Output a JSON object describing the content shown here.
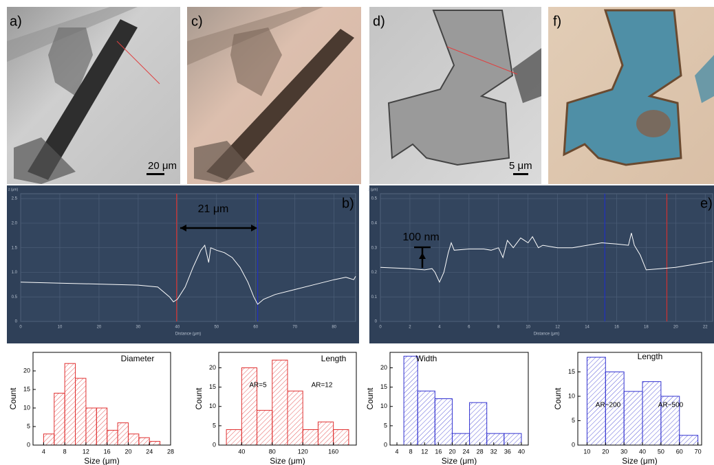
{
  "panels": [
    {
      "label": "a)",
      "scale": "20 μm"
    },
    {
      "label": "c)"
    },
    {
      "label": "d)",
      "scale": "5 μm"
    },
    {
      "label": "f)"
    }
  ],
  "chart_data": [
    {
      "type": "profile",
      "label": "b)",
      "x_label": "Distance (μm)",
      "y_label": "z (μm)",
      "annotations": [
        "21 μm"
      ],
      "x": [
        0,
        10,
        20,
        30,
        35,
        38,
        39,
        40,
        42,
        44,
        46,
        47,
        48,
        48.5,
        50,
        52,
        54,
        56,
        58,
        59.5,
        60.5,
        62,
        65,
        70,
        75,
        80,
        83,
        85,
        85.5
      ],
      "values": [
        0.8,
        0.78,
        0.76,
        0.74,
        0.7,
        0.5,
        0.4,
        0.45,
        0.7,
        1.1,
        1.45,
        1.55,
        1.2,
        1.5,
        1.45,
        1.4,
        1.3,
        1.1,
        0.8,
        0.5,
        0.35,
        0.45,
        0.55,
        0.65,
        0.75,
        0.85,
        0.9,
        0.85,
        0.92
      ],
      "color": "#ffffff",
      "markers": [
        {
          "x": 39.8,
          "color": "#d03030"
        },
        {
          "x": 60.5,
          "color": "#2030c0"
        }
      ],
      "xlim": [
        0,
        85.5
      ],
      "xticks": [
        0,
        10,
        20,
        30,
        40,
        50,
        60,
        70,
        80
      ],
      "ylim": [
        0,
        2.6
      ],
      "yticks": [
        0,
        0.5,
        {
          "value": 1,
          "label": "1.0"
        },
        1.5,
        {
          "value": 2,
          "label": "2.0"
        },
        2.5
      ],
      "grid": true
    },
    {
      "type": "profile",
      "label": "e)",
      "x_label": "Distance (μm)",
      "y_label": "z (μm)",
      "annotations": [
        "100 nm"
      ],
      "x": [
        0,
        2,
        3,
        3.5,
        3.7,
        4,
        4.3,
        4.6,
        4.8,
        5,
        6,
        7,
        7.5,
        8,
        8.3,
        8.6,
        9,
        9.5,
        10,
        10.3,
        10.7,
        11,
        12,
        13,
        14,
        15,
        16,
        16.8,
        17,
        17.2,
        17.6,
        18,
        19,
        20,
        22,
        22.5
      ],
      "values": [
        0.22,
        0.215,
        0.21,
        0.215,
        0.2,
        0.16,
        0.2,
        0.28,
        0.32,
        0.29,
        0.295,
        0.295,
        0.29,
        0.3,
        0.26,
        0.33,
        0.3,
        0.34,
        0.32,
        0.345,
        0.3,
        0.31,
        0.3,
        0.3,
        0.31,
        0.32,
        0.315,
        0.31,
        0.36,
        0.31,
        0.27,
        0.21,
        0.215,
        0.22,
        0.24,
        0.245
      ],
      "color": "#ffffff",
      "markers": [
        {
          "x": 15.2,
          "color": "#2030c0"
        },
        {
          "x": 19.4,
          "color": "#d03030"
        }
      ],
      "xlim": [
        0,
        22.5
      ],
      "xticks": [
        0,
        2,
        4,
        6,
        8,
        10,
        12,
        14,
        16,
        18,
        20,
        22
      ],
      "ylim": [
        0,
        0.52
      ],
      "yticks": [
        0,
        0.1,
        0.2,
        0.3,
        0.4,
        0.5
      ],
      "grid": true
    },
    {
      "type": "histogram",
      "title": "Diameter",
      "x_label": "Size (μm)",
      "y_label": "Count",
      "annotations": [],
      "bins": [
        4,
        6,
        8,
        10,
        12,
        14,
        16,
        18,
        20,
        22,
        24,
        26
      ],
      "values": [
        3,
        14,
        22,
        18,
        10,
        10,
        4,
        6,
        3,
        2,
        1
      ],
      "color": "#e03030",
      "xlim": [
        2,
        28
      ],
      "xticks": [
        4,
        8,
        12,
        16,
        20,
        24,
        28
      ],
      "ylim": [
        0,
        25
      ],
      "yticks": [
        0,
        5,
        10,
        15,
        20
      ]
    },
    {
      "type": "histogram",
      "title": "Length",
      "x_label": "Size (μm)",
      "y_label": "Count",
      "annotations": [
        "AR=5",
        "AR=12"
      ],
      "bins": [
        20,
        40,
        60,
        80,
        100,
        120,
        140,
        160,
        180
      ],
      "values": [
        4,
        20,
        9,
        22,
        14,
        4,
        6,
        4
      ],
      "color": "#e03030",
      "xlim": [
        10,
        190
      ],
      "xticks": [
        40,
        80,
        120,
        160
      ],
      "ylim": [
        0,
        24
      ],
      "yticks": [
        0,
        5,
        10,
        15,
        20
      ]
    },
    {
      "type": "histogram",
      "title": "Width",
      "x_label": "Size (μm)",
      "y_label": "Count",
      "annotations": [],
      "bins": [
        6,
        10,
        15,
        20,
        25,
        30,
        35,
        40
      ],
      "values": [
        23,
        14,
        12,
        3,
        11,
        3,
        3
      ],
      "color": "#3030d0",
      "xlim": [
        2,
        42
      ],
      "xticks": [
        4,
        8,
        12,
        16,
        20,
        24,
        28,
        32,
        36,
        40
      ],
      "ylim": [
        0,
        24
      ],
      "yticks": [
        0,
        5,
        10,
        15,
        20
      ]
    },
    {
      "type": "histogram",
      "title": "Length",
      "x_label": "Size (μm)",
      "y_label": "Count",
      "annotations": [
        "AR~200",
        "AR~500"
      ],
      "bins": [
        10,
        20,
        30,
        40,
        50,
        60,
        70
      ],
      "values": [
        18,
        15,
        11,
        13,
        10,
        2
      ],
      "color": "#3030d0",
      "xlim": [
        5,
        72
      ],
      "xticks": [
        10,
        20,
        30,
        40,
        50,
        60,
        70
      ],
      "ylim": [
        0,
        19
      ],
      "yticks": [
        0,
        5,
        10,
        15
      ]
    }
  ]
}
